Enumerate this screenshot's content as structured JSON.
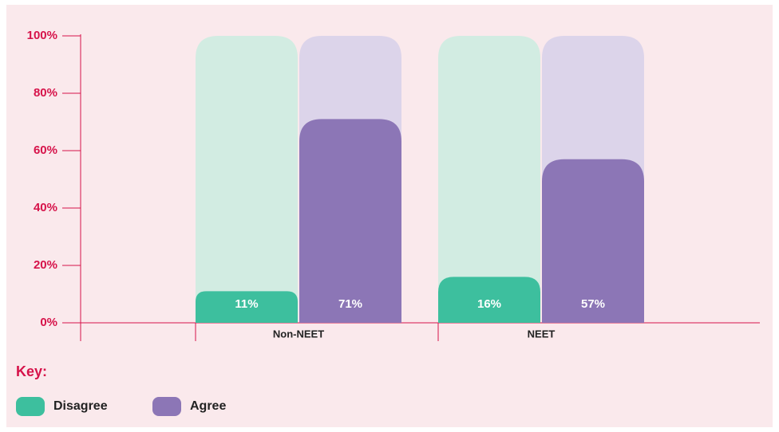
{
  "chart_data": {
    "type": "bar",
    "categories": [
      "Non-NEET",
      "NEET"
    ],
    "series": [
      {
        "name": "Disagree",
        "color": "#3dbf9e",
        "track_color": "#d2ece2",
        "values": [
          11,
          16
        ],
        "value_labels": [
          "11%",
          "16%"
        ]
      },
      {
        "name": "Agree",
        "color": "#8c76b6",
        "track_color": "#dcd4ea",
        "values": [
          71,
          57
        ],
        "value_labels": [
          "71%",
          "57%"
        ]
      }
    ],
    "ylim": [
      0,
      100
    ],
    "yticks": [
      {
        "value": 0,
        "label": "0%"
      },
      {
        "value": 20,
        "label": "20%"
      },
      {
        "value": 40,
        "label": "40%"
      },
      {
        "value": 60,
        "label": "60%"
      },
      {
        "value": 80,
        "label": "80%"
      },
      {
        "value": 100,
        "label": "100%"
      }
    ],
    "legend_title": "Key:",
    "axis_color": "#d6134a"
  }
}
